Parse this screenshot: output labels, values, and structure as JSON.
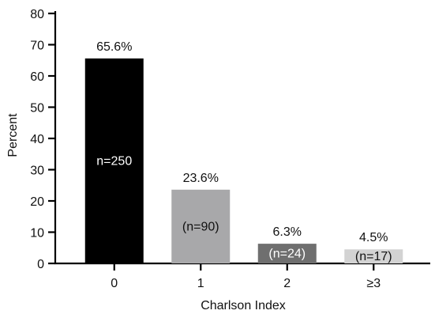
{
  "chart_data": {
    "type": "bar",
    "categories": [
      "0",
      "1",
      "2",
      "≥3"
    ],
    "values": [
      65.6,
      23.6,
      6.3,
      4.5
    ],
    "value_labels": [
      "65.6%",
      "23.6%",
      "6.3%",
      "4.5%"
    ],
    "count_labels": [
      "n=250",
      "(n=90)",
      "(n=24)",
      "(n=17)"
    ],
    "bar_colors": [
      "#000000",
      "#a8a8aa",
      "#6f6f6f",
      "#d3d3d3"
    ],
    "count_label_colors": [
      "#ffffff",
      "#111111",
      "#ffffff",
      "#111111"
    ],
    "xlabel": "Charlson Index",
    "ylabel": "Percent",
    "ylim": [
      0,
      80
    ],
    "yticks": [
      0,
      10,
      20,
      30,
      40,
      50,
      60,
      70,
      80
    ],
    "grid": false,
    "legend": "none"
  }
}
